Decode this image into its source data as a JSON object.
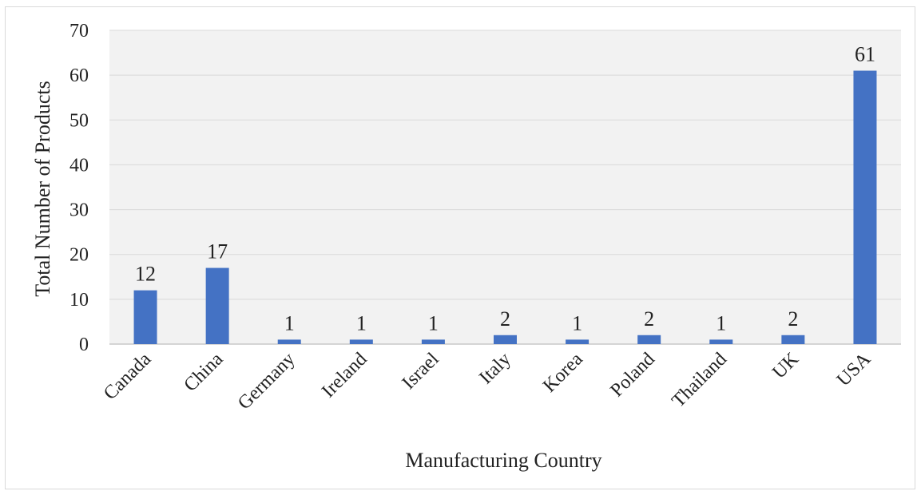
{
  "chart_data": {
    "type": "bar",
    "title": "",
    "xlabel": "Manufacturing Country",
    "ylabel": "Total Number of Products",
    "categories": [
      "Canada",
      "China",
      "Germany",
      "Ireland",
      "Israel",
      "Italy",
      "Korea",
      "Poland",
      "Thailand",
      "UK",
      "USA"
    ],
    "values": [
      12,
      17,
      1,
      1,
      1,
      2,
      1,
      2,
      1,
      2,
      61
    ],
    "ylim": [
      0,
      70
    ],
    "yticks": [
      0,
      10,
      20,
      30,
      40,
      50,
      60,
      70
    ],
    "grid": true,
    "legend": "none",
    "colors": {
      "bar": "#4472c4",
      "plot_background": "#f2f2f2",
      "gridline": "#d9d9d9"
    }
  }
}
